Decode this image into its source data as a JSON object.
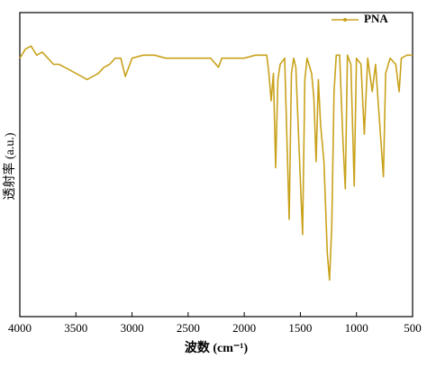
{
  "chart_data": {
    "type": "line",
    "xlabel": "波数 (cm⁻¹)",
    "ylabel": "透射率 (a.u.)",
    "xlim": [
      4000,
      500
    ],
    "xticks": [
      4000,
      3500,
      3000,
      2500,
      2000,
      1500,
      1000,
      500
    ],
    "ylim": [
      0,
      100
    ],
    "legend": "upper right",
    "series": [
      {
        "name": "PNA",
        "color": "#c9a21c",
        "x": [
          4000,
          3950,
          3900,
          3850,
          3800,
          3750,
          3700,
          3650,
          3600,
          3500,
          3400,
          3300,
          3250,
          3200,
          3150,
          3100,
          3060,
          3000,
          2900,
          2800,
          2700,
          2600,
          2500,
          2400,
          2300,
          2230,
          2200,
          2100,
          2000,
          1900,
          1800,
          1780,
          1760,
          1740,
          1720,
          1700,
          1680,
          1640,
          1600,
          1580,
          1560,
          1540,
          1500,
          1480,
          1460,
          1440,
          1400,
          1380,
          1360,
          1340,
          1320,
          1290,
          1260,
          1240,
          1220,
          1200,
          1180,
          1150,
          1120,
          1100,
          1080,
          1050,
          1020,
          1000,
          960,
          930,
          900,
          860,
          830,
          760,
          740,
          700,
          650,
          620,
          600,
          550,
          500
        ],
        "values": [
          85,
          88,
          89,
          86,
          87,
          85,
          83,
          83,
          82,
          80,
          78,
          80,
          82,
          83,
          85,
          85,
          79,
          85,
          86,
          86,
          85,
          85,
          85,
          85,
          85,
          82,
          85,
          85,
          85,
          86,
          86,
          80,
          71,
          80,
          49,
          78,
          83,
          85,
          32,
          80,
          85,
          82,
          45,
          27,
          78,
          85,
          80,
          72,
          51,
          78,
          63,
          51,
          21,
          12,
          30,
          74,
          86,
          86,
          57,
          42,
          86,
          83,
          43,
          85,
          83,
          60,
          85,
          74,
          83,
          46,
          80,
          85,
          83,
          74,
          85,
          86,
          86
        ]
      }
    ]
  }
}
